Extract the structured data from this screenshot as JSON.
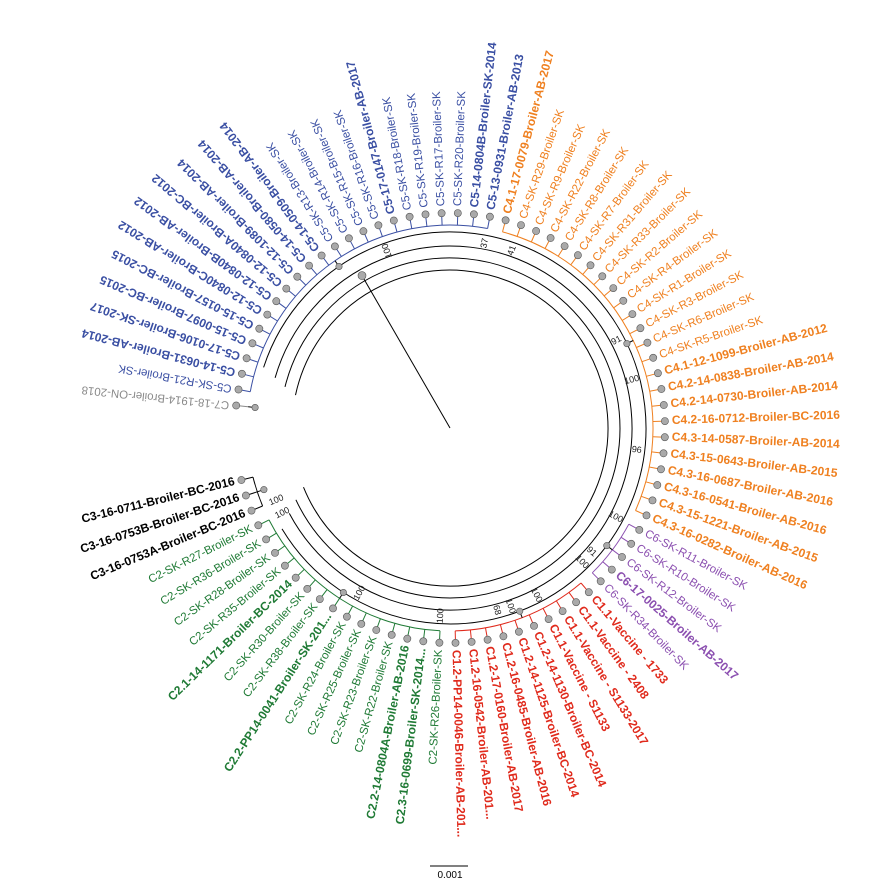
{
  "colors": {
    "C1": "#e02a1c",
    "C2": "#1f7a35",
    "C3": "#000000",
    "C7": "#8a8a8a",
    "C5": "#3a4fa3",
    "C4": "#ef8020",
    "C6": "#8b4fb0",
    "branch": "#000000",
    "node": "#a9a9a9"
  },
  "scale_label": "0.001",
  "tips": [
    {
      "label": "C7-18-1914-Broiler-ON-2018",
      "clade": "C7",
      "bold": false
    },
    {
      "label": "C5-SK-R21-Broiler-SK",
      "clade": "C5",
      "bold": false
    },
    {
      "label": "C5-14-0631-Broiler-AB-2014",
      "clade": "C5",
      "bold": true
    },
    {
      "label": "C5-17-0106-Broiler-SK-2017",
      "clade": "C5",
      "bold": true
    },
    {
      "label": "C5-15-0097-Broiler-BC-2015",
      "clade": "C5",
      "bold": true
    },
    {
      "label": "C5-15-0157-Broiler-BC-2015",
      "clade": "C5",
      "bold": true
    },
    {
      "label": "C5-12-0840C-Broiler-AB-2012",
      "clade": "C5",
      "bold": true
    },
    {
      "label": "C5-12-0840B-Broiler-AB-2012",
      "clade": "C5",
      "bold": true
    },
    {
      "label": "C5-12-0840A-Broiler-BC-2012",
      "clade": "C5",
      "bold": true
    },
    {
      "label": "C5-12-1089-Broiler-AB-2014",
      "clade": "C5",
      "bold": true
    },
    {
      "label": "C5-14-0580-Broiler-AB-2014",
      "clade": "C5",
      "bold": true
    },
    {
      "label": "C5-14-0509-Broiler-AB-2014",
      "clade": "C5",
      "bold": true
    },
    {
      "label": "C5-SK-R13-Broiler-SK",
      "clade": "C5",
      "bold": false
    },
    {
      "label": "C5-SK-R14-Broiler-SK",
      "clade": "C5",
      "bold": false
    },
    {
      "label": "C5-SK-R15-Broiler-SK",
      "clade": "C5",
      "bold": false
    },
    {
      "label": "C5-SK-R16-Broiler-SK",
      "clade": "C5",
      "bold": false
    },
    {
      "label": "C5-17-0147-Broiler-AB-2017",
      "clade": "C5",
      "bold": true
    },
    {
      "label": "C5-SK-R18-Broiler-SK",
      "clade": "C5",
      "bold": false
    },
    {
      "label": "C5-SK-R19-Broiler-SK",
      "clade": "C5",
      "bold": false
    },
    {
      "label": "C5-SK-R17-Broiler-SK",
      "clade": "C5",
      "bold": false
    },
    {
      "label": "C5-SK-R20-Broiler-SK",
      "clade": "C5",
      "bold": false
    },
    {
      "label": "C5-14-0804B-Broiler-SK-2014",
      "clade": "C5",
      "bold": true
    },
    {
      "label": "C5-13-0931-Broiler-AB-2013",
      "clade": "C5",
      "bold": true
    },
    {
      "label": "C4.1-17-0079-Broiler-AB-2017",
      "clade": "C4",
      "bold": true
    },
    {
      "label": "C4-SK-R29-Broiler-SK",
      "clade": "C4",
      "bold": false
    },
    {
      "label": "C4-SK-R9-Broiler-SK",
      "clade": "C4",
      "bold": false
    },
    {
      "label": "C4-SK-R22-Broiler-SK",
      "clade": "C4",
      "bold": false
    },
    {
      "label": "C4-SK-R8-Broiler-SK",
      "clade": "C4",
      "bold": false
    },
    {
      "label": "C4-SK-R7-Broiler-SK",
      "clade": "C4",
      "bold": false
    },
    {
      "label": "C4-SK-R31-Broiler-SK",
      "clade": "C4",
      "bold": false
    },
    {
      "label": "C4-SK-R33-Broiler-SK",
      "clade": "C4",
      "bold": false
    },
    {
      "label": "C4-SK-R2-Broiler-SK",
      "clade": "C4",
      "bold": false
    },
    {
      "label": "C4-SK-R4-Broiler-SK",
      "clade": "C4",
      "bold": false
    },
    {
      "label": "C4-SK-R1-Broiler-SK",
      "clade": "C4",
      "bold": false
    },
    {
      "label": "C4-SK-R3-Broiler-SK",
      "clade": "C4",
      "bold": false
    },
    {
      "label": "C4-SK-R6-Broiler-SK",
      "clade": "C4",
      "bold": false
    },
    {
      "label": "C4-SK-R5-Broiler-SK",
      "clade": "C4",
      "bold": false
    },
    {
      "label": "C4.1-12-1099-Broiler-AB-2012",
      "clade": "C4",
      "bold": true
    },
    {
      "label": "C4.2-14-0838-Broiler-AB-2014",
      "clade": "C4",
      "bold": true
    },
    {
      "label": "C4.2-14-0730-Broiler-AB-2014",
      "clade": "C4",
      "bold": true
    },
    {
      "label": "C4.2-16-0712-Broiler-BC-2016",
      "clade": "C4",
      "bold": true
    },
    {
      "label": "C4.3-14-0587-Broiler-AB-2014",
      "clade": "C4",
      "bold": true
    },
    {
      "label": "C4.3-15-0643-Broiler-AB-2015",
      "clade": "C4",
      "bold": true
    },
    {
      "label": "C4.3-16-0687-Broiler-AB-2016",
      "clade": "C4",
      "bold": true
    },
    {
      "label": "C4.3-16-0541-Broiler-AB-2016",
      "clade": "C4",
      "bold": true
    },
    {
      "label": "C4.3-15-1221-Broiler-AB-2015",
      "clade": "C4",
      "bold": true
    },
    {
      "label": "C4.3-16-0282-Broiler-AB-2016",
      "clade": "C4",
      "bold": true
    },
    {
      "label": "C6-SK-R11-Broiler-SK",
      "clade": "C6",
      "bold": false
    },
    {
      "label": "C6-SK-R10-Broiler-SK",
      "clade": "C6",
      "bold": false
    },
    {
      "label": "C6-SK-R12-Broiler-SK",
      "clade": "C6",
      "bold": false
    },
    {
      "label": "C6-17-0025-Broiler-AB-2017",
      "clade": "C6",
      "bold": true
    },
    {
      "label": "C6-SK-R34-Broiler-SK",
      "clade": "C6",
      "bold": false
    },
    {
      "label": "C1.1-Vaccine - 1733",
      "clade": "C1",
      "bold": true
    },
    {
      "label": "C1.1-Vaccine - 2408",
      "clade": "C1",
      "bold": true
    },
    {
      "label": "C1.1-Vaccine - S1133-2017",
      "clade": "C1",
      "bold": true
    },
    {
      "label": "C1.1-Vaccine - S1133",
      "clade": "C1",
      "bold": true
    },
    {
      "label": "C1.2-14-1130-Broiler-BC-2014",
      "clade": "C1",
      "bold": true
    },
    {
      "label": "C1.2-14-1125-Broiler-BC-2014",
      "clade": "C1",
      "bold": true
    },
    {
      "label": "C1.2-16-0485-Broiler-AB-2016",
      "clade": "C1",
      "bold": true
    },
    {
      "label": "C1.2-17-0160-Broiler-AB-2017",
      "clade": "C1",
      "bold": true
    },
    {
      "label": "C1.2-16-0542-Broiler-AB-201...",
      "clade": "C1",
      "bold": true
    },
    {
      "label": "C1.2-PP14-0046-Broiler-AB-201...",
      "clade": "C1",
      "bold": true
    },
    {
      "label": "C2-SK-R26-Broiler-SK",
      "clade": "C2",
      "bold": false
    },
    {
      "label": "C2.3-16-0699-Broiler-SK-2014...",
      "clade": "C2",
      "bold": true
    },
    {
      "label": "C2.2-14-0804A-Broiler-AB-2016",
      "clade": "C2",
      "bold": true
    },
    {
      "label": "C2-SK-R22-Broiler-SK",
      "clade": "C2",
      "bold": false
    },
    {
      "label": "C2-SK-R23-Broiler-SK",
      "clade": "C2",
      "bold": false
    },
    {
      "label": "C2-SK-R25-Broiler-SK",
      "clade": "C2",
      "bold": false
    },
    {
      "label": "C2-SK-R24-Broiler-SK",
      "clade": "C2",
      "bold": false
    },
    {
      "label": "C2.2-PP14-0041-Broiler-SK-201...",
      "clade": "C2",
      "bold": true
    },
    {
      "label": "C2-SK-R38-Broiler-SK",
      "clade": "C2",
      "bold": false
    },
    {
      "label": "C2-SK-R30-Broiler-SK",
      "clade": "C2",
      "bold": false
    },
    {
      "label": "C2.1-14-1171-Broiler-BC-2014",
      "clade": "C2",
      "bold": true
    },
    {
      "label": "C2-SK-R35-Broiler-SK",
      "clade": "C2",
      "bold": false
    },
    {
      "label": "C2-SK-R28-Broiler-SK",
      "clade": "C2",
      "bold": false
    },
    {
      "label": "C2-SK-R36-Broiler-SK",
      "clade": "C2",
      "bold": false
    },
    {
      "label": "C2-SK-R27-Broiler-SK",
      "clade": "C2",
      "bold": false
    },
    {
      "label": "C3-16-0753A-Broiler-BC-2016",
      "clade": "C3",
      "bold": true
    },
    {
      "label": "C3-16-0753B-Broiler-BC-2016",
      "clade": "C3",
      "bold": true
    },
    {
      "label": "C3-16-0711-Broiler-BC-2016",
      "clade": "C3",
      "bold": true
    }
  ],
  "supports": [
    {
      "label": "100",
      "near": "C3-16-0753A-Broiler-BC-2016"
    },
    {
      "label": "100",
      "near": "C5-SK-R16-Broiler-SK"
    },
    {
      "label": "37",
      "near": "C5-13-0931-Broiler-AB-2013"
    },
    {
      "label": "41",
      "near": "C4-SK-R29-Broiler-SK"
    },
    {
      "label": "91",
      "near": "C4-SK-R3-Broiler-SK"
    },
    {
      "label": "100",
      "near": "C4.1-12-1099-Broiler-AB-2012"
    },
    {
      "label": "96",
      "near": "C4.3-15-0643-Broiler-AB-2015"
    },
    {
      "label": "100",
      "near": "C6-SK-R11-Broiler-SK"
    },
    {
      "label": "91",
      "near": "C6-17-0025-Broiler-AB-2017"
    },
    {
      "label": "100",
      "near": "C6-SK-R34-Broiler-SK"
    },
    {
      "label": "100",
      "near": "C1.1-Vaccine - S1133"
    },
    {
      "label": "100",
      "near": "C1.2-14-1125-Broiler-BC-2014"
    },
    {
      "label": "68",
      "near": "C1.2-16-0485-Broiler-AB-2016"
    },
    {
      "label": "100",
      "near": "C2-SK-R26-Broiler-SK"
    },
    {
      "label": "100",
      "near": "C2-SK-R24-Broiler-SK"
    },
    {
      "label": "100",
      "near": "C2-SK-R27-Broiler-SK"
    }
  ]
}
